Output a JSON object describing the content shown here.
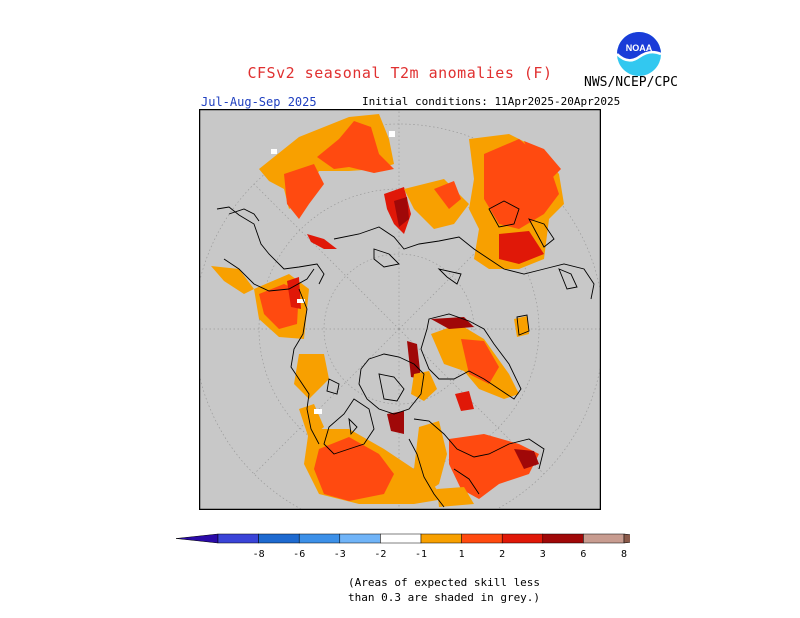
{
  "header": {
    "title": "CFSv2 seasonal T2m anomalies (F)",
    "agency": "NWS/NCEP/CPC",
    "season": "Jul-Aug-Sep 2025",
    "initial_conditions": "Initial conditions: 11Apr2025-20Apr2025"
  },
  "logo": {
    "text": "NOAA",
    "colors": {
      "top": "#1a3cd8",
      "bottom": "#32c8f0"
    }
  },
  "map": {
    "projection": "north polar stereographic",
    "background_color": "#c8c8c8",
    "coastline_color": "#000000"
  },
  "legend": {
    "labels": [
      "-8",
      "-6",
      "-3",
      "-2",
      "-1",
      "1",
      "2",
      "3",
      "6",
      "8"
    ],
    "colors": [
      "#2a0aa8",
      "#3a44d8",
      "#1e6ad0",
      "#3c90e8",
      "#70b4f8",
      "#ffffff",
      "#f8a000",
      "#ff4a10",
      "#e01808",
      "#a00808",
      "#c89c90",
      "#8a5a4a"
    ]
  },
  "footnote": {
    "line1": "(Areas of expected skill less",
    "line2": "than 0.3 are shaded in grey.)"
  }
}
